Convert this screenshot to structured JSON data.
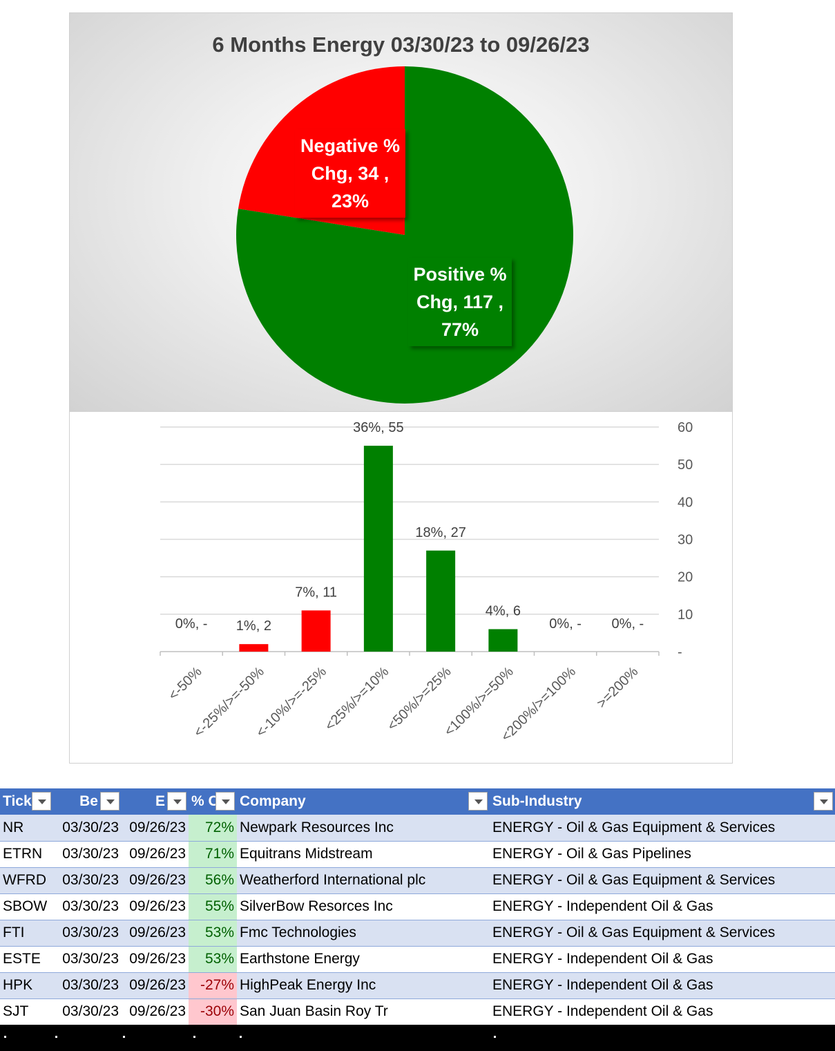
{
  "chart_data": [
    {
      "type": "pie",
      "title": "6 Months Energy 03/30/23 to 09/26/23",
      "slices": [
        {
          "name": "Negative % Chg",
          "value": 34,
          "percent": "23%",
          "color": "#ff0000",
          "label_lines": [
            "Negative %",
            "Chg,  34 ,",
            "23%"
          ]
        },
        {
          "name": "Positive % Chg",
          "value": 117,
          "percent": "77%",
          "color": "#008000",
          "label_lines": [
            "Positive %",
            "Chg,  117 ,",
            "77%"
          ]
        }
      ]
    },
    {
      "type": "bar",
      "categories": [
        "<-50%",
        "<-25%/>=-50%",
        "<-10%/>=-25%",
        "<25%/>=10%",
        "<50%/>=25%",
        "<100%/>=50%",
        "<200%/>=100%",
        ">=200%"
      ],
      "values": [
        0,
        2,
        11,
        55,
        27,
        6,
        0,
        0
      ],
      "data_labels": [
        "0%,  -",
        "1%,  2",
        "7%,  11",
        "36%,  55",
        "18%,  27",
        "4%,  6",
        "0%,  -",
        "0%,  -"
      ],
      "colors": [
        "#ff0000",
        "#ff0000",
        "#ff0000",
        "#008000",
        "#008000",
        "#008000",
        "#008000",
        "#008000"
      ],
      "ylim": [
        0,
        60
      ],
      "yticks": [
        0,
        10,
        20,
        30,
        40,
        50,
        60
      ],
      "ytick_labels": [
        "-",
        "10",
        "20",
        "30",
        "40",
        "50",
        "60"
      ],
      "y_axis_side": "right",
      "grid": true
    }
  ],
  "table": {
    "headers": [
      "Tick",
      "Be",
      "E",
      "% C",
      "Company",
      "Sub-Industry"
    ],
    "rows": [
      {
        "ticker": "NR",
        "begin": "03/30/23",
        "end": "09/26/23",
        "pct": "72%",
        "sign": "pos",
        "company": "Newpark Resources Inc",
        "sub": "ENERGY - Oil & Gas Equipment & Services"
      },
      {
        "ticker": "ETRN",
        "begin": "03/30/23",
        "end": "09/26/23",
        "pct": "71%",
        "sign": "pos",
        "company": "Equitrans Midstream",
        "sub": "ENERGY - Oil & Gas Pipelines"
      },
      {
        "ticker": "WFRD",
        "begin": "03/30/23",
        "end": "09/26/23",
        "pct": "56%",
        "sign": "pos",
        "company": "Weatherford International plc",
        "sub": "ENERGY - Oil & Gas Equipment & Services"
      },
      {
        "ticker": "SBOW",
        "begin": "03/30/23",
        "end": "09/26/23",
        "pct": "55%",
        "sign": "pos",
        "company": "SilverBow Resorces Inc",
        "sub": "ENERGY - Independent Oil & Gas"
      },
      {
        "ticker": "FTI",
        "begin": "03/30/23",
        "end": "09/26/23",
        "pct": "53%",
        "sign": "pos",
        "company": "Fmc Technologies",
        "sub": "ENERGY - Oil & Gas Equipment & Services"
      },
      {
        "ticker": "ESTE",
        "begin": "03/30/23",
        "end": "09/26/23",
        "pct": "53%",
        "sign": "pos",
        "company": "Earthstone Energy",
        "sub": "ENERGY - Independent Oil & Gas"
      },
      {
        "ticker": "HPK",
        "begin": "03/30/23",
        "end": "09/26/23",
        "pct": "-27%",
        "sign": "neg",
        "company": "HighPeak Energy Inc",
        "sub": "ENERGY - Independent Oil & Gas"
      },
      {
        "ticker": "SJT",
        "begin": "03/30/23",
        "end": "09/26/23",
        "pct": "-30%",
        "sign": "neg",
        "company": "San Juan Basin Roy Tr",
        "sub": "ENERGY - Independent Oil & Gas"
      }
    ]
  }
}
